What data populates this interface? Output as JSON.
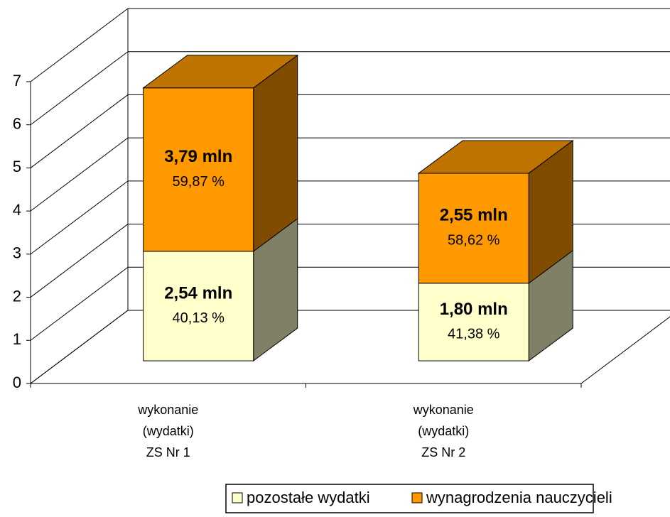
{
  "chart_data": {
    "type": "bar3d_stacked",
    "categories": [
      "wykonanie\n(wydatki)\nZS Nr 1",
      "wykonanie\n(wydatki)\nZS Nr 2"
    ],
    "series": [
      {
        "name": "pozostałe wydatki",
        "color": "#ffffcc",
        "values": [
          2.54,
          1.8
        ],
        "value_labels": [
          "2,54 mln",
          "1,80 mln"
        ],
        "percents": [
          40.13,
          41.38
        ],
        "percent_labels": [
          "40,13 %",
          "41,38 %"
        ]
      },
      {
        "name": "wynagrodzenia nauczycieli",
        "color": "#ff9900",
        "values": [
          3.79,
          2.55
        ],
        "value_labels": [
          "3,79 mln",
          "2,55 mln"
        ],
        "percents": [
          59.87,
          58.62
        ],
        "percent_labels": [
          "59,87 %",
          "58,62 %"
        ]
      }
    ],
    "ylim": [
      0,
      7
    ],
    "yticks": [
      0,
      1,
      2,
      3,
      4,
      5,
      6,
      7
    ],
    "grid": true,
    "legend": "bottom"
  }
}
